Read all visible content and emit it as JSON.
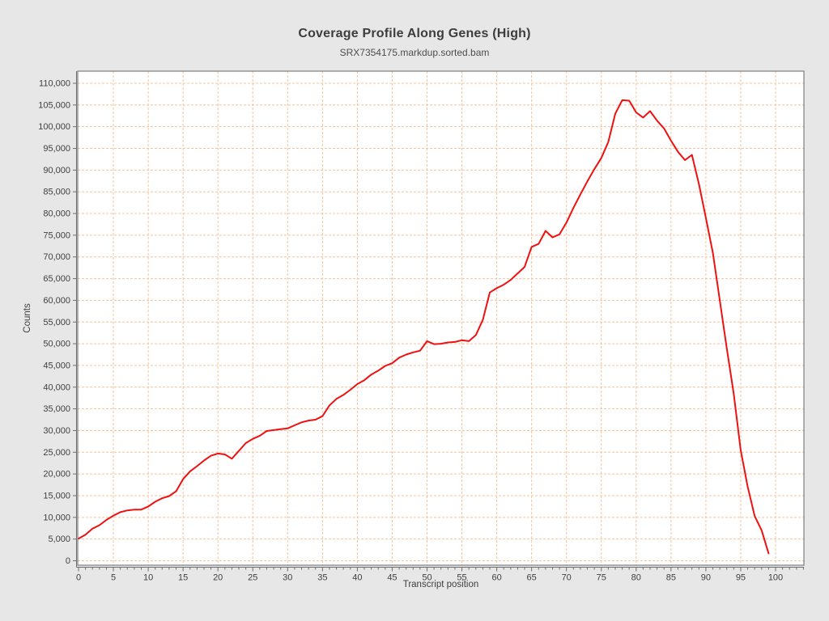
{
  "header": {
    "title": "Coverage Profile Along Genes (High)",
    "subtitle": "SRX7354175.markdup.sorted.bam"
  },
  "chart_data": {
    "type": "line",
    "title": "Coverage Profile Along Genes (High)",
    "subtitle": "SRX7354175.markdup.sorted.bam",
    "xlabel": "Transcript position",
    "ylabel": "Counts",
    "legend": false,
    "grid": true,
    "grid_style": "dashed",
    "xlim": [
      0,
      104
    ],
    "ylim": [
      0,
      112600
    ],
    "x_ticks": [
      0,
      5,
      10,
      15,
      20,
      25,
      30,
      35,
      40,
      45,
      50,
      55,
      60,
      65,
      70,
      75,
      80,
      85,
      90,
      95,
      100
    ],
    "x_tick_labels": [
      "0",
      "5",
      "10",
      "15",
      "20",
      "25",
      "30",
      "35",
      "40",
      "45",
      "50",
      "55",
      "60",
      "65",
      "70",
      "75",
      "80",
      "85",
      "90",
      "95",
      "100"
    ],
    "x_minor_tick_step": 1,
    "x_minor_tick_max": 104,
    "y_ticks": [
      0,
      5000,
      10000,
      15000,
      20000,
      25000,
      30000,
      35000,
      40000,
      45000,
      50000,
      55000,
      60000,
      65000,
      70000,
      75000,
      80000,
      85000,
      90000,
      95000,
      100000,
      105000,
      110000
    ],
    "y_tick_labels": [
      "0",
      "5,000",
      "10,000",
      "15,000",
      "20,000",
      "25,000",
      "30,000",
      "35,000",
      "40,000",
      "45,000",
      "50,000",
      "55,000",
      "60,000",
      "65,000",
      "70,000",
      "75,000",
      "80,000",
      "85,000",
      "90,000",
      "95,000",
      "100,000",
      "105,000",
      "110,000"
    ],
    "series": [
      {
        "name": "SRX7354175.markdup.sorted.bam",
        "color": "#ee1111",
        "x": [
          0,
          1,
          2,
          3,
          4,
          5,
          6,
          7,
          8,
          9,
          10,
          11,
          12,
          13,
          14,
          15,
          16,
          17,
          18,
          19,
          20,
          21,
          22,
          23,
          24,
          25,
          26,
          27,
          28,
          29,
          30,
          31,
          32,
          33,
          34,
          35,
          36,
          37,
          38,
          39,
          40,
          41,
          42,
          43,
          44,
          45,
          46,
          47,
          48,
          49,
          50,
          51,
          52,
          53,
          54,
          55,
          56,
          57,
          58,
          59,
          60,
          61,
          62,
          63,
          64,
          65,
          66,
          67,
          68,
          69,
          70,
          71,
          72,
          73,
          74,
          75,
          76,
          77,
          78,
          79,
          80,
          81,
          82,
          83,
          84,
          85,
          86,
          87,
          88,
          89,
          90,
          91,
          92,
          93,
          94,
          95,
          96,
          97,
          98,
          99
        ],
        "y": [
          5100,
          6000,
          7400,
          8200,
          9400,
          10400,
          11200,
          11600,
          11800,
          11800,
          12500,
          13600,
          14400,
          14900,
          16000,
          18800,
          20600,
          21800,
          23100,
          24200,
          24700,
          24500,
          23500,
          25300,
          27100,
          28100,
          28800,
          29900,
          30100,
          30300,
          30500,
          31200,
          31900,
          32300,
          32500,
          33300,
          35800,
          37300,
          38200,
          39400,
          40700,
          41600,
          42900,
          43800,
          44900,
          45500,
          46800,
          47500,
          48000,
          48400,
          50600,
          49900,
          50000,
          50300,
          50400,
          50800,
          50600,
          52000,
          55500,
          61800,
          62800,
          63600,
          64700,
          66200,
          67700,
          72300,
          73000,
          76000,
          74500,
          75200,
          77900,
          81300,
          84400,
          87400,
          90200,
          92800,
          96500,
          103000,
          106100,
          106000,
          103300,
          102100,
          103600,
          101400,
          99600,
          96800,
          94200,
          92300,
          93500,
          86800,
          79000,
          71000,
          60000,
          49000,
          38500,
          25500,
          17000,
          10300,
          7000,
          1700
        ]
      }
    ],
    "colors": {
      "background": "#e7e7e7",
      "plot_background": "#ffffff",
      "plot_border": "#7e7e7e",
      "axis_line": "#6e6e6e",
      "grid": "#f3c49c",
      "tick_text": "#3f3f3f",
      "axis_label_text": "#3f3f3f",
      "line": "#ee1111"
    }
  }
}
